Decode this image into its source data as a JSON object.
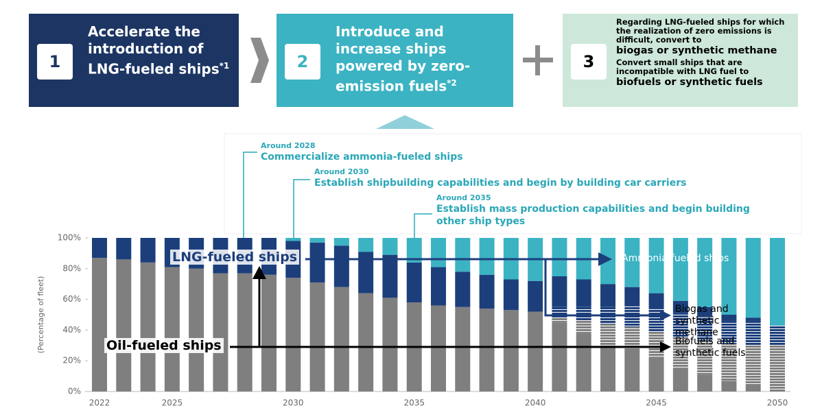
{
  "boxes": [
    {
      "number": "1",
      "text": "Accelerate the introduction of LNG-fueled ships",
      "note": "*1"
    },
    {
      "number": "2",
      "text": "Introduce and increase ships powered by zero-emission fuels",
      "note": "*2"
    },
    {
      "number": "3",
      "lines": [
        "Regarding LNG-fueled ships for which the realization of zero emissions is difficult, convert to",
        "biogas or synthetic methane",
        "Convert small ships that are incompatible with LNG fuel to",
        "biofuels or synthetic fuels"
      ]
    }
  ],
  "milestones": [
    {
      "when": "Around 2028",
      "text": "Commercialize ammonia-fueled ships"
    },
    {
      "when": "Around 2030",
      "text": "Establish shipbuilding capabilities and begin by building car carriers"
    },
    {
      "when": "Around 2035",
      "text": "Establish mass production capabilities and begin building other ship types"
    }
  ],
  "chart_data": {
    "type": "stacked_bar",
    "y_label": "(Percentage of fleet)",
    "categories": [
      "2022",
      null,
      null,
      "2025",
      null,
      null,
      null,
      null,
      "2030",
      null,
      null,
      null,
      null,
      "2035",
      null,
      null,
      null,
      null,
      "2040",
      null,
      null,
      null,
      null,
      "2045",
      null,
      null,
      null,
      null,
      "2050"
    ],
    "series": [
      {
        "name": "Oil-fueled ships",
        "color": "#7f7f7f",
        "pattern": "solid",
        "values": [
          87,
          86,
          84,
          81,
          80,
          77,
          77,
          76,
          74,
          71,
          68,
          64,
          61,
          58,
          56,
          55,
          54,
          53,
          52,
          45,
          38,
          30,
          27,
          22,
          15,
          11,
          7,
          4,
          0
        ]
      },
      {
        "name": "Biofuels and synthetic fuels",
        "color": "#7f7f7f",
        "pattern": "dashed",
        "values": [
          0,
          0,
          0,
          0,
          0,
          0,
          0,
          0,
          0,
          0,
          0,
          0,
          0,
          0,
          0,
          0,
          0,
          0,
          0,
          3,
          8,
          14,
          15,
          17,
          20,
          22,
          24,
          26,
          30
        ]
      },
      {
        "name": "Biogas and synthetic methane",
        "color": "#1c3f7c",
        "pattern": "dashed",
        "values": [
          0,
          0,
          0,
          0,
          0,
          0,
          0,
          0,
          0,
          0,
          0,
          0,
          0,
          0,
          0,
          0,
          0,
          0,
          0,
          7,
          9,
          11,
          14,
          15,
          16,
          16,
          15,
          16,
          13
        ]
      },
      {
        "name": "LNG-fueled ships",
        "color": "#1c3f7c",
        "pattern": "solid",
        "values": [
          13,
          14,
          16,
          19,
          20,
          23,
          23,
          24,
          24,
          26,
          27,
          27,
          28,
          26,
          25,
          23,
          22,
          20,
          20,
          20,
          18,
          15,
          12,
          10,
          8,
          6,
          4,
          2,
          0
        ]
      },
      {
        "name": "Ammonia-fueled ships",
        "color": "#3bb3c3",
        "pattern": "solid",
        "values": [
          0,
          0,
          0,
          0,
          0,
          0,
          0,
          0,
          2,
          3,
          5,
          9,
          11,
          16,
          19,
          22,
          24,
          27,
          28,
          25,
          27,
          30,
          32,
          36,
          41,
          45,
          50,
          52,
          57
        ]
      }
    ],
    "ylim": [
      0,
      100
    ],
    "yticks": [
      {
        "value": 0,
        "label": "0%"
      },
      {
        "value": 20,
        "label": "20%"
      },
      {
        "value": 40,
        "label": "40%"
      },
      {
        "value": 60,
        "label": "60%"
      },
      {
        "value": 80,
        "label": "80%"
      },
      {
        "value": 100,
        "label": "100%"
      }
    ]
  }
}
